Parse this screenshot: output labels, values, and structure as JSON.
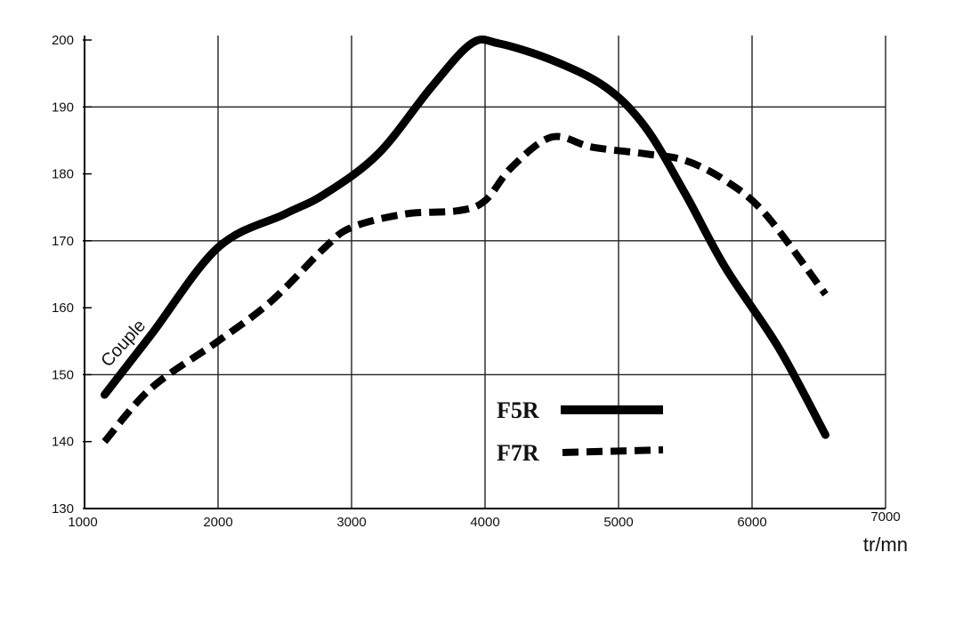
{
  "chart_data": {
    "type": "line",
    "xlabel": "tr/mn",
    "ylabel": "",
    "xlim": [
      1000,
      7000
    ],
    "ylim": [
      130,
      200
    ],
    "x_ticks": [
      "1000",
      "2000",
      "3000",
      "4000",
      "5000",
      "6000",
      "7000"
    ],
    "y_ticks": [
      "130",
      "140",
      "150",
      "160",
      "170",
      "180",
      "190",
      "200"
    ],
    "grid": true,
    "annotation": "Couple",
    "legend_position": "bottom-center",
    "series": [
      {
        "name": "F5R",
        "style": "solid",
        "color": "#000000",
        "points": [
          [
            1150,
            147
          ],
          [
            1500,
            156
          ],
          [
            2000,
            169
          ],
          [
            2500,
            174
          ],
          [
            2800,
            177
          ],
          [
            3200,
            183
          ],
          [
            3600,
            193
          ],
          [
            3900,
            199.5
          ],
          [
            4100,
            199.5
          ],
          [
            4500,
            197
          ],
          [
            4900,
            193
          ],
          [
            5200,
            187
          ],
          [
            5500,
            177
          ],
          [
            5800,
            166
          ],
          [
            6200,
            154
          ],
          [
            6550,
            141
          ]
        ]
      },
      {
        "name": "F7R",
        "style": "dashed",
        "color": "#000000",
        "points": [
          [
            1150,
            140
          ],
          [
            1500,
            148
          ],
          [
            2000,
            155
          ],
          [
            2400,
            161
          ],
          [
            2800,
            169
          ],
          [
            3000,
            172
          ],
          [
            3400,
            174
          ],
          [
            3800,
            174.5
          ],
          [
            4000,
            176
          ],
          [
            4200,
            181
          ],
          [
            4500,
            185.5
          ],
          [
            4800,
            184
          ],
          [
            5200,
            183
          ],
          [
            5500,
            182
          ],
          [
            5800,
            179
          ],
          [
            6100,
            174
          ],
          [
            6550,
            162
          ]
        ]
      }
    ]
  }
}
